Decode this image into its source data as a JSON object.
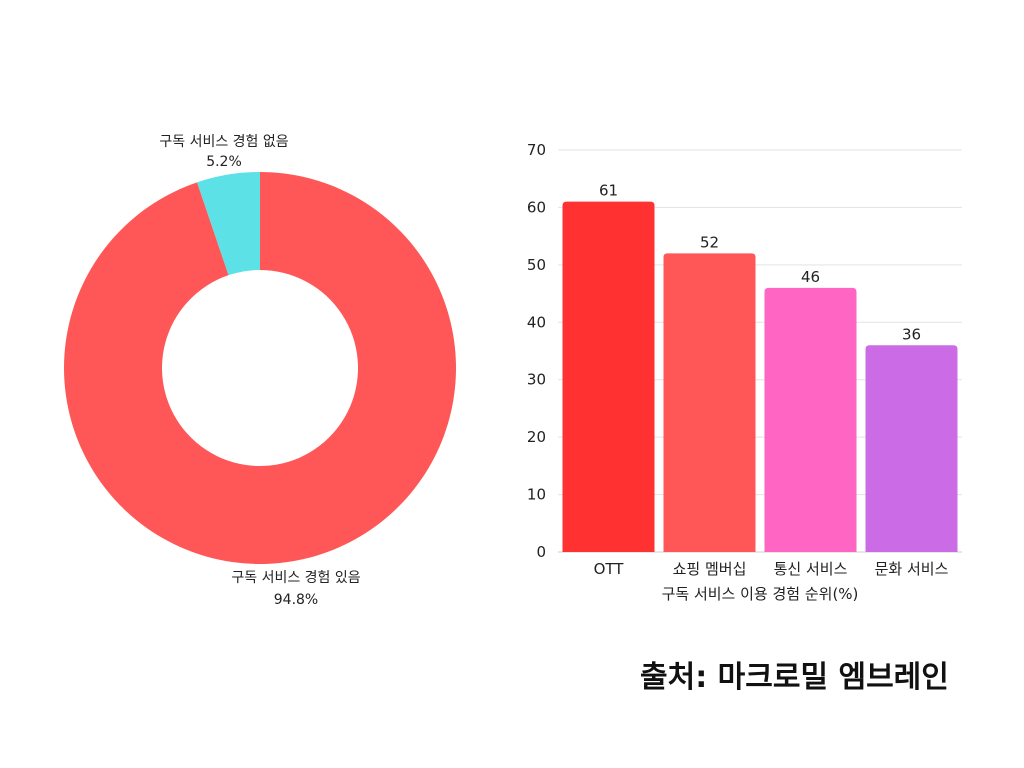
{
  "chart_data": [
    {
      "type": "pie",
      "categories": [
        "구독 서비스 경험 있음",
        "구독 서비스 경험 없음"
      ],
      "values": [
        94.8,
        5.2
      ],
      "value_labels": [
        "94.8%",
        "5.2%"
      ],
      "colors": [
        "#ff5757",
        "#5ce1e6"
      ]
    },
    {
      "type": "bar",
      "categories": [
        "OTT",
        "쇼핑 멤버십",
        "통신 서비스",
        "문화 서비스"
      ],
      "values": [
        61,
        52,
        46,
        36
      ],
      "value_labels": [
        "61",
        "52",
        "46",
        "36"
      ],
      "colors": [
        "#ff3131",
        "#ff5757",
        "#ff66c4",
        "#cb6ce6"
      ],
      "xlabel": "구독 서비스 이용 경험 순위(%)",
      "ylim": [
        0,
        70
      ],
      "yticks": [
        "0",
        "10",
        "20",
        "30",
        "40",
        "50",
        "60",
        "70"
      ],
      "grid": true
    }
  ],
  "source": "출처: 마크로밀 엠브레인"
}
